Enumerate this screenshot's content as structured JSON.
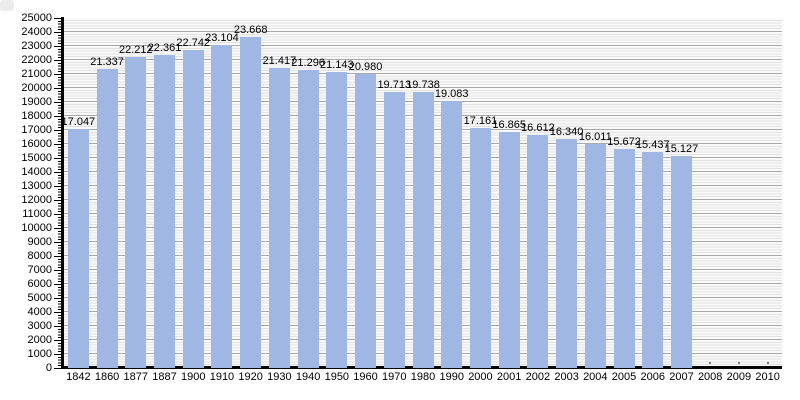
{
  "chart_data": {
    "type": "bar",
    "title": "",
    "xlabel": "",
    "ylabel": "",
    "categories": [
      "1842",
      "1860",
      "1877",
      "1887",
      "1900",
      "1910",
      "1920",
      "1930",
      "1940",
      "1950",
      "1960",
      "1970",
      "1980",
      "1990",
      "2000",
      "2001",
      "2002",
      "2003",
      "2004",
      "2005",
      "2006",
      "2007",
      "2008",
      "2009",
      "2010"
    ],
    "values": [
      17047,
      21337,
      22212,
      22361,
      22742,
      23104,
      23668,
      21417,
      21296,
      21143,
      20980,
      19713,
      19738,
      19083,
      17161,
      16865,
      16612,
      16340,
      16011,
      15672,
      15437,
      15127,
      null,
      null,
      null
    ],
    "value_labels": [
      "17.047",
      "21.337",
      "22.212",
      "22.361",
      "22.742",
      "23.104",
      "23.668",
      "21.417",
      "21.296",
      "21.143",
      "20.980",
      "19.713",
      "19.738",
      "19.083",
      "17.161",
      "16.865",
      "16.612",
      "16.340",
      "16.011",
      "15.672",
      "15.437",
      "15.127",
      "",
      "",
      ""
    ],
    "yticks": [
      "0",
      "1000",
      "2000",
      "3000",
      "4000",
      "5000",
      "6000",
      "7000",
      "8000",
      "9000",
      "10000",
      "11000",
      "12000",
      "13000",
      "14000",
      "15000",
      "16000",
      "17000",
      "18000",
      "19000",
      "20000",
      "21000",
      "22000",
      "23000",
      "24000",
      "25000"
    ],
    "ylim": [
      0,
      25000
    ],
    "ytick_step": 1000,
    "minor_tick_step": 200,
    "grid": "horizontal major + minor stripes",
    "legend": "none",
    "bar_color": "#a1b7e3",
    "axis_color": "#000000",
    "major_grid_color": "#a9a9a9",
    "minor_grid_color": "#e2e2e2",
    "background_color": "#ffffff",
    "missing_data_marker": "dot"
  }
}
